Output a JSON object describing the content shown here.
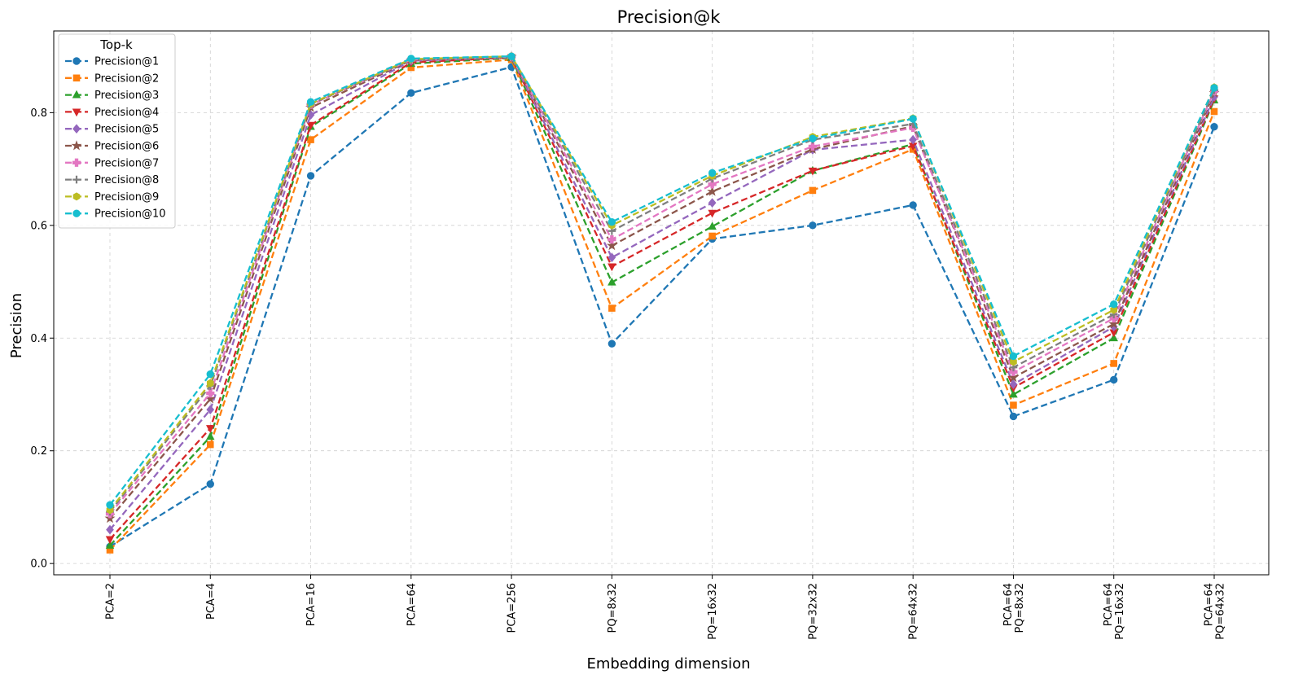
{
  "chart_data": {
    "type": "line",
    "title": "Precision@k",
    "xlabel": "Embedding dimension",
    "ylabel": "Precision",
    "categories": [
      [
        "PCA=2"
      ],
      [
        "PCA=4"
      ],
      [
        "PCA=16"
      ],
      [
        "PCA=64"
      ],
      [
        "PCA=256"
      ],
      [
        "PQ=8x32"
      ],
      [
        "PQ=16x32"
      ],
      [
        "PQ=32x32"
      ],
      [
        "PQ=64x32"
      ],
      [
        "PCA=64",
        "PQ=8x32"
      ],
      [
        "PCA=64",
        "PQ=16x32"
      ],
      [
        "PCA=64",
        "PQ=64x32"
      ]
    ],
    "ylim": [
      -0.02,
      0.945
    ],
    "yticks": [
      0.0,
      0.2,
      0.4,
      0.6,
      0.8
    ],
    "ytick_labels": [
      "0.0",
      "0.2",
      "0.4",
      "0.6",
      "0.8"
    ],
    "grid": true,
    "legend_title": "Top-k",
    "legend_position": "top-left",
    "series": [
      {
        "name": "Precision@1",
        "color": "#1f77b4",
        "marker": "circle",
        "values": [
          0.03,
          0.141,
          0.688,
          0.835,
          0.881,
          0.39,
          0.576,
          0.6,
          0.636,
          0.261,
          0.326,
          0.775
        ]
      },
      {
        "name": "Precision@2",
        "color": "#ff7f0e",
        "marker": "square",
        "values": [
          0.024,
          0.211,
          0.752,
          0.88,
          0.894,
          0.453,
          0.581,
          0.662,
          0.735,
          0.281,
          0.355,
          0.802
        ]
      },
      {
        "name": "Precision@3",
        "color": "#2ca02c",
        "marker": "triangle-up",
        "values": [
          0.032,
          0.225,
          0.775,
          0.887,
          0.897,
          0.499,
          0.598,
          0.697,
          0.744,
          0.3,
          0.4,
          0.822
        ]
      },
      {
        "name": "Precision@4",
        "color": "#d62728",
        "marker": "triangle-down",
        "values": [
          0.043,
          0.24,
          0.778,
          0.889,
          0.898,
          0.527,
          0.622,
          0.697,
          0.741,
          0.312,
          0.41,
          0.825
        ]
      },
      {
        "name": "Precision@5",
        "color": "#9467bd",
        "marker": "diamond",
        "values": [
          0.06,
          0.273,
          0.796,
          0.892,
          0.898,
          0.543,
          0.64,
          0.734,
          0.752,
          0.318,
          0.42,
          0.828
        ]
      },
      {
        "name": "Precision@6",
        "color": "#8c564b",
        "marker": "star",
        "values": [
          0.08,
          0.292,
          0.809,
          0.893,
          0.899,
          0.564,
          0.66,
          0.735,
          0.776,
          0.33,
          0.425,
          0.835
        ]
      },
      {
        "name": "Precision@7",
        "color": "#e377c2",
        "marker": "plus-filled",
        "values": [
          0.088,
          0.302,
          0.814,
          0.894,
          0.899,
          0.575,
          0.673,
          0.74,
          0.773,
          0.34,
          0.435,
          0.838
        ]
      },
      {
        "name": "Precision@8",
        "color": "#7f7f7f",
        "marker": "plus",
        "values": [
          0.092,
          0.315,
          0.815,
          0.894,
          0.899,
          0.59,
          0.683,
          0.752,
          0.78,
          0.348,
          0.442,
          0.84
        ]
      },
      {
        "name": "Precision@9",
        "color": "#bcbd22",
        "marker": "hexagon",
        "values": [
          0.095,
          0.32,
          0.816,
          0.895,
          0.9,
          0.6,
          0.688,
          0.757,
          0.79,
          0.358,
          0.45,
          0.845
        ]
      },
      {
        "name": "Precision@10",
        "color": "#17becf",
        "marker": "circle",
        "values": [
          0.104,
          0.336,
          0.819,
          0.896,
          0.9,
          0.606,
          0.693,
          0.754,
          0.789,
          0.368,
          0.46,
          0.844
        ]
      }
    ]
  }
}
